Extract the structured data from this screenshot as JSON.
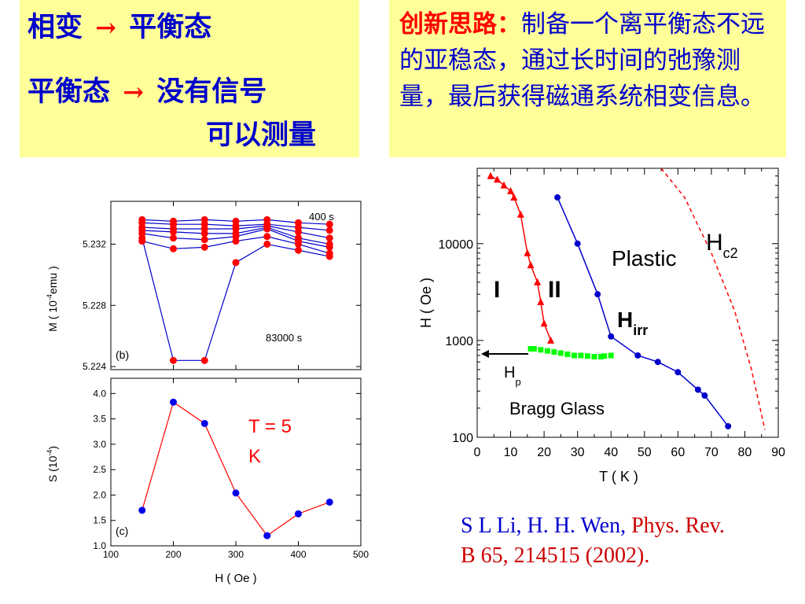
{
  "slide": {
    "left_box": {
      "line1_a": "相变",
      "line1_b": "平衡态",
      "line2_a": "平衡态",
      "line2_b": "没有信号",
      "line3": "可以测量",
      "arrow": "→"
    },
    "right_box": {
      "label": "创新思路：",
      "text": "制备一个离平衡态不远的亚稳态，通过长时间的弛豫测量，最后获得磁通系统相变信息。"
    },
    "citation": {
      "part1": "S L Li, H. H. Wen, ",
      "part2": "Phys. Rev. B 65, 214515 (2002)."
    }
  },
  "charts": {
    "b": {
      "ylabel_main": "M ( 10",
      "ylabel_sup": "-4",
      "ylabel_tail": "emu )",
      "panel_label": "(b)",
      "top_annotation": "400 s",
      "bottom_annotation": "83000 s",
      "ytick_labels": [
        "5.232",
        "5.228",
        "5.224"
      ]
    },
    "c": {
      "ylabel_main": "S (10",
      "ylabel_sup": "-4",
      "ylabel_tail": ")",
      "panel_label": "(c)",
      "xlabel": "H ( Oe )",
      "annotation_line1": "T  =  5",
      "annotation_line2": "K",
      "ytick_labels": [
        "4.0",
        "3.5",
        "3.0",
        "2.5",
        "2.0",
        "1.5",
        "1.0"
      ],
      "xtick_labels": [
        "100",
        "200",
        "300",
        "400",
        "500"
      ]
    },
    "phase": {
      "xlabel": "T ( K )",
      "ylabel": "H ( Oe )",
      "xtick_labels": [
        "0",
        "10",
        "20",
        "30",
        "40",
        "50",
        "60",
        "70",
        "80",
        "90"
      ],
      "ytick_labels": [
        "10000",
        "1000",
        "100"
      ],
      "label_I": "I",
      "label_II": "II",
      "label_plastic": "Plastic",
      "label_hc2_main": "H",
      "label_hc2_sub": "c2",
      "label_hirr_main": "H",
      "label_hirr_sub": "irr",
      "label_hp_main": "H",
      "label_hp_sub": "p",
      "label_bragg": "Bragg Glass"
    }
  },
  "chart_data": [
    {
      "type": "line",
      "panel": "(b)",
      "ylabel": "M ( 10-4emu )",
      "xlim": [
        100,
        500
      ],
      "ylim": [
        5.2238,
        5.2348
      ],
      "x": [
        150,
        200,
        250,
        300,
        350,
        400,
        450
      ],
      "series": [
        {
          "name": "400 s",
          "values": [
            5.2336,
            5.2335,
            5.2336,
            5.2335,
            5.2336,
            5.2334,
            5.2333
          ]
        },
        {
          "values": [
            5.2334,
            5.2333,
            5.2333,
            5.2332,
            5.2333,
            5.2331,
            5.2329
          ]
        },
        {
          "values": [
            5.2331,
            5.233,
            5.233,
            5.233,
            5.2332,
            5.2328,
            5.2324
          ]
        },
        {
          "values": [
            5.2329,
            5.2328,
            5.2327,
            5.2327,
            5.2331,
            5.2324,
            5.232
          ]
        },
        {
          "values": [
            5.2327,
            5.2324,
            5.2323,
            5.2325,
            5.233,
            5.2322,
            5.2318
          ]
        },
        {
          "values": [
            5.2322,
            5.2317,
            5.2318,
            5.2322,
            5.2325,
            5.232,
            5.2314
          ]
        },
        {
          "name": "83000 s",
          "values": [
            5.2324,
            5.2244,
            5.2244,
            5.2308,
            5.232,
            5.2316,
            5.2312
          ]
        }
      ],
      "series_color": "#ff0000",
      "line_color": "#0000cc"
    },
    {
      "type": "line",
      "panel": "(c)",
      "xlabel": "H ( Oe )",
      "ylabel": "S (10-4)",
      "xlim": [
        100,
        500
      ],
      "ylim": [
        1.0,
        4.3
      ],
      "x": [
        150,
        200,
        250,
        300,
        350,
        400,
        450
      ],
      "values": [
        1.7,
        3.83,
        3.41,
        2.04,
        1.2,
        1.63,
        1.86
      ],
      "marker_color": "#0000ee",
      "line_color": "#ff0000"
    },
    {
      "type": "line",
      "panel": "phase diagram",
      "xlabel": "T ( K )",
      "ylabel": "H ( Oe )",
      "yscale": "log",
      "xlim": [
        0,
        90
      ],
      "ylim": [
        100,
        60000
      ],
      "series": [
        {
          "name": "I",
          "color": "#ff0000",
          "x": [
            4,
            6,
            8,
            10,
            11,
            13,
            15,
            16,
            18,
            19,
            20,
            22
          ],
          "y": [
            50000,
            46000,
            40000,
            35000,
            30000,
            20000,
            8000,
            6000,
            4000,
            2500,
            1500,
            1000
          ]
        },
        {
          "name": "H_irr",
          "color": "#0000cc",
          "x": [
            24,
            30,
            36,
            40,
            48,
            54,
            60,
            66,
            68,
            75
          ],
          "y": [
            30000,
            10000,
            3000,
            1100,
            700,
            600,
            470,
            310,
            270,
            130
          ]
        },
        {
          "name": "H_p",
          "color": "#00ff00",
          "x": [
            16,
            17,
            19,
            21,
            23,
            25,
            27,
            29,
            31,
            33,
            35,
            37,
            38,
            40
          ],
          "y": [
            820,
            820,
            800,
            780,
            760,
            740,
            720,
            700,
            700,
            690,
            680,
            680,
            690,
            700
          ]
        },
        {
          "name": "H_c2",
          "color": "#ff0000",
          "style": "dashed",
          "x": [
            55,
            62,
            70,
            77,
            82,
            86
          ],
          "y": [
            60000,
            30000,
            8000,
            2000,
            500,
            120
          ]
        }
      ]
    }
  ]
}
